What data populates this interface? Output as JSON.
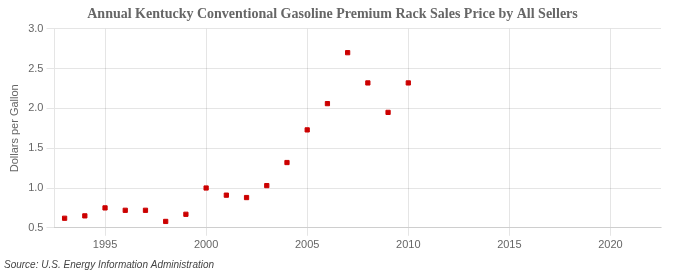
{
  "chart_data": {
    "type": "scatter",
    "title": "Annual Kentucky Conventional Gasoline Premium Rack Sales Price by All Sellers",
    "y_label": "Dollars per Gallon",
    "annotation": "Source: U.S. Energy Information Administration",
    "x": [
      1993,
      1994,
      1995,
      1996,
      1997,
      1998,
      1999,
      2000,
      2001,
      2002,
      2003,
      2004,
      2005,
      2006,
      2007,
      2008,
      2009,
      2010
    ],
    "values": [
      0.62,
      0.65,
      0.75,
      0.72,
      0.72,
      0.58,
      0.67,
      1.0,
      0.91,
      0.88,
      1.03,
      1.32,
      1.73,
      2.06,
      2.7,
      2.32,
      1.95,
      2.32
    ],
    "color": "#cc0000",
    "marker": "square",
    "xlim": [
      1992.5,
      2022.5
    ],
    "ylim": [
      0.5,
      3.0
    ],
    "xticks": [
      1995,
      2000,
      2005,
      2010,
      2015,
      2020
    ],
    "yticks": [
      0.5,
      {
        "value": 1.0,
        "label": "1.0"
      },
      1.5,
      {
        "value": 2.0,
        "label": "2.0"
      },
      2.5,
      {
        "value": 3.0,
        "label": "3.0"
      }
    ],
    "grid": true,
    "legend": false
  }
}
